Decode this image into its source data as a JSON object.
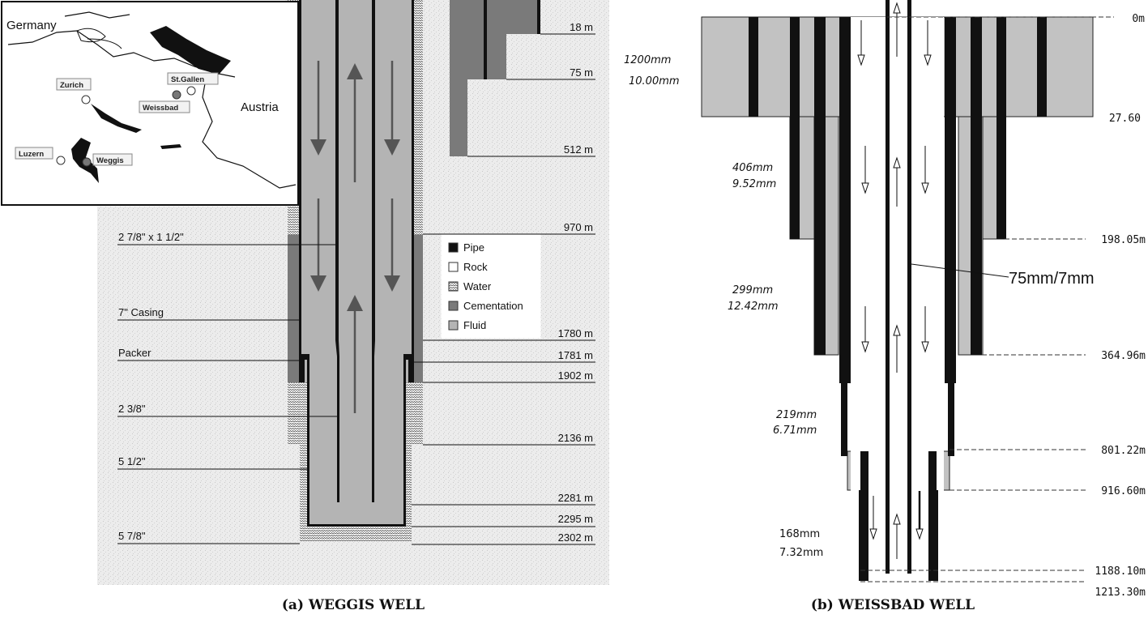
{
  "map": {
    "country_labels": [
      "Germany",
      "Austria"
    ],
    "cities": [
      "Zurich",
      "St.Gallen",
      "Weissbad",
      "Luzern",
      "Weggis"
    ]
  },
  "weggis": {
    "caption": "(a) WEGGIS WELL",
    "depths": [
      "18 m",
      "75 m",
      "512 m",
      "970 m",
      "1780 m",
      "1781 m",
      "1902 m",
      "2136 m",
      "2281 m",
      "2295 m",
      "2302 m"
    ],
    "left_labels": [
      "2 7/8\" x 1 1/2\"",
      "7\" Casing",
      "Packer",
      "2 3/8\"",
      "5 1/2\"",
      "5 7/8\""
    ],
    "legend": [
      {
        "label": "Pipe",
        "color": "#111111"
      },
      {
        "label": "Rock",
        "color": "#ffffff"
      },
      {
        "label": "Water",
        "color": "#dddddd"
      },
      {
        "label": "Cementation",
        "color": "#7a7a7a"
      },
      {
        "label": "Fluid",
        "color": "#b4b4b4"
      }
    ]
  },
  "weissbad": {
    "caption": "(b) WEISSBAD WELL",
    "depths": [
      "0m",
      "27.60",
      "198.05m",
      "364.96m",
      "801.22m",
      "916.60m",
      "1188.10m",
      "1213.30m"
    ],
    "dims": [
      {
        "d": "1200mm",
        "t": "10.00mm"
      },
      {
        "d": "406mm",
        "t": "9.52mm"
      },
      {
        "d": "299mm",
        "t": "12.42mm"
      },
      {
        "d": "219mm",
        "t": "6.71mm"
      },
      {
        "d": "168mm",
        "t": "7.32mm"
      }
    ],
    "tubing_label": "75mm/7mm"
  }
}
